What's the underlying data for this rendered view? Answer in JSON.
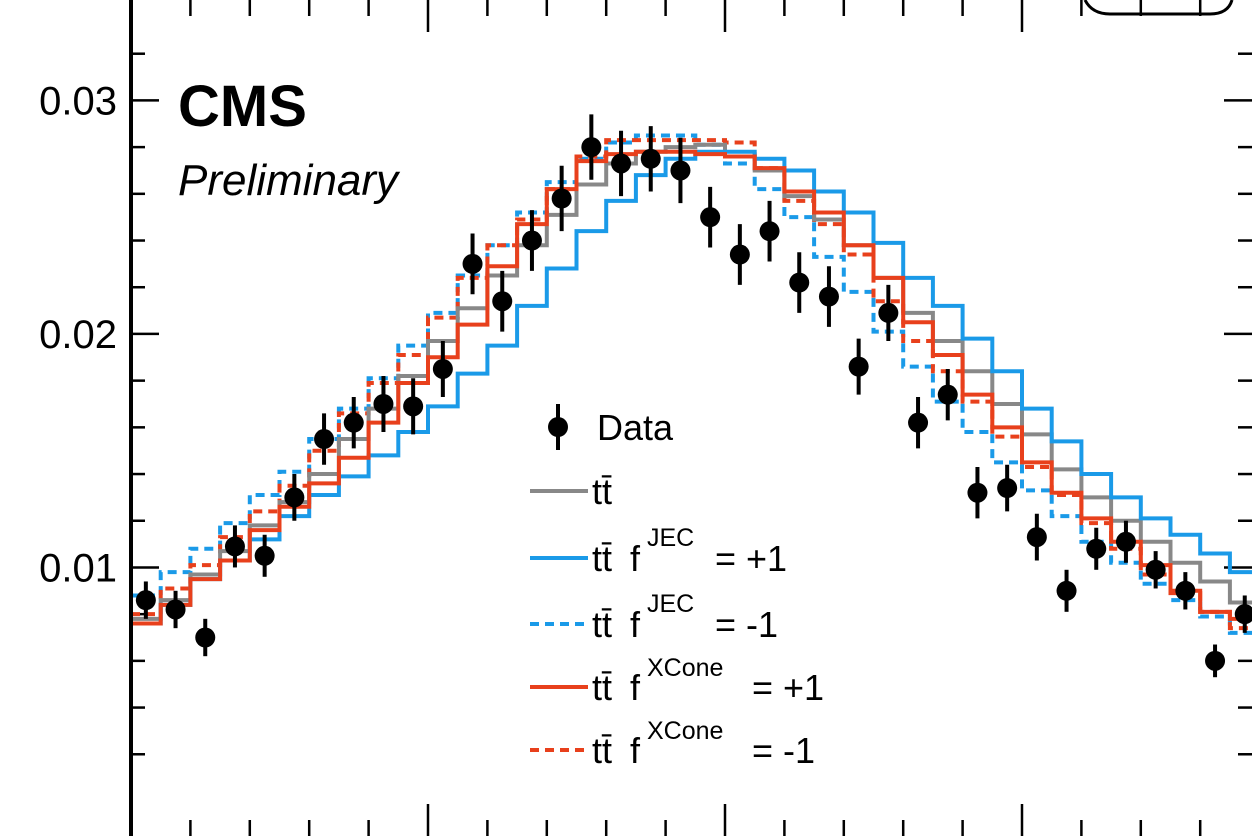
{
  "experiment_label": "CMS",
  "status_label": "Preliminary",
  "colors": {
    "data": "#000000",
    "nominal": "#888888",
    "jec": "#1a9ae8",
    "xcone": "#e8401c"
  },
  "legend": {
    "data": "Data",
    "ttbar": "tt̄",
    "jec_label": "JEC",
    "xcone_label": "XCone",
    "f": "f",
    "plus": "= +1",
    "minus": "= -1"
  },
  "chart_data": {
    "type": "histogram",
    "title": "",
    "xlabel": "",
    "ylabel": "",
    "ylim": [
      -0.0015,
      0.0343
    ],
    "yticks": [
      {
        "value": 0.01,
        "label": "0.01"
      },
      {
        "value": 0.02,
        "label": "0.02"
      },
      {
        "value": 0.03,
        "label": "0.03"
      }
    ],
    "bin_count": 38,
    "legend_position": "center",
    "series": [
      {
        "name": "tt̄",
        "style": "solid",
        "color": "nominal",
        "values": [
          0.0078,
          0.0086,
          0.0097,
          0.0107,
          0.0118,
          0.0128,
          0.014,
          0.0155,
          0.0168,
          0.0182,
          0.0197,
          0.0211,
          0.0225,
          0.0238,
          0.0251,
          0.0264,
          0.0273,
          0.0278,
          0.028,
          0.0281,
          0.0276,
          0.027,
          0.0259,
          0.0249,
          0.0238,
          0.0224,
          0.0209,
          0.0197,
          0.0184,
          0.017,
          0.0157,
          0.0142,
          0.013,
          0.012,
          0.0111,
          0.0102,
          0.0094,
          0.0085
        ]
      },
      {
        "name": "tt̄ f JEC = +1",
        "style": "solid",
        "color": "jec",
        "values": [
          0.0076,
          0.0084,
          0.0095,
          0.0103,
          0.0112,
          0.0122,
          0.0131,
          0.0139,
          0.0148,
          0.0158,
          0.0169,
          0.0183,
          0.0195,
          0.0212,
          0.0228,
          0.0244,
          0.0257,
          0.0268,
          0.0275,
          0.0278,
          0.0278,
          0.0275,
          0.027,
          0.0261,
          0.0252,
          0.0239,
          0.0224,
          0.0212,
          0.0198,
          0.0184,
          0.0168,
          0.0154,
          0.014,
          0.013,
          0.0121,
          0.0114,
          0.0106,
          0.0098
        ]
      },
      {
        "name": "tt̄ f JEC = -1",
        "style": "dashed",
        "color": "jec",
        "values": [
          0.0088,
          0.0098,
          0.0108,
          0.0119,
          0.0131,
          0.0141,
          0.0155,
          0.0168,
          0.0181,
          0.0195,
          0.0209,
          0.0225,
          0.0238,
          0.0252,
          0.0265,
          0.0275,
          0.0282,
          0.0285,
          0.0285,
          0.0281,
          0.0273,
          0.0262,
          0.025,
          0.0233,
          0.0218,
          0.0201,
          0.0186,
          0.0171,
          0.0158,
          0.0145,
          0.0133,
          0.0122,
          0.0111,
          0.0102,
          0.0093,
          0.0086,
          0.0079,
          0.0072
        ]
      },
      {
        "name": "tt̄ f XCone = +1",
        "style": "solid",
        "color": "xcone",
        "values": [
          0.0076,
          0.0084,
          0.0095,
          0.0103,
          0.0116,
          0.0126,
          0.0136,
          0.0147,
          0.0162,
          0.0179,
          0.019,
          0.0204,
          0.0229,
          0.0247,
          0.0262,
          0.0274,
          0.0277,
          0.0278,
          0.0278,
          0.0277,
          0.0276,
          0.0271,
          0.0261,
          0.0252,
          0.0238,
          0.0224,
          0.0205,
          0.0191,
          0.0174,
          0.016,
          0.0145,
          0.0132,
          0.0121,
          0.0111,
          0.0101,
          0.009,
          0.0081,
          0.0078
        ]
      },
      {
        "name": "tt̄ f XCone = -1",
        "style": "dashed",
        "color": "xcone",
        "values": [
          0.008,
          0.0091,
          0.0101,
          0.0113,
          0.0124,
          0.0135,
          0.015,
          0.0166,
          0.0179,
          0.0191,
          0.0207,
          0.0224,
          0.0238,
          0.0249,
          0.0262,
          0.0276,
          0.0283,
          0.0283,
          0.0283,
          0.0283,
          0.0282,
          0.0271,
          0.0257,
          0.0247,
          0.0234,
          0.0214,
          0.0197,
          0.0184,
          0.0171,
          0.0156,
          0.0143,
          0.0131,
          0.0119,
          0.0108,
          0.0097,
          0.0089,
          0.0081,
          0.0074
        ]
      },
      {
        "name": "Data",
        "style": "points",
        "color": "data",
        "values": [
          0.0086,
          0.0082,
          0.007,
          0.0109,
          0.0105,
          0.013,
          0.0155,
          0.0162,
          0.017,
          0.0169,
          0.0185,
          0.023,
          0.0214,
          0.024,
          0.0258,
          0.028,
          0.0273,
          0.0275,
          0.027,
          0.025,
          0.0234,
          0.0244,
          0.0222,
          0.0216,
          0.0186,
          0.0209,
          0.0162,
          0.0174,
          0.0132,
          0.0134,
          0.0113,
          0.009,
          0.0108,
          0.0111,
          0.0099,
          0.009,
          0.006,
          0.008
        ],
        "errors": [
          0.0008,
          0.0008,
          0.0008,
          0.0009,
          0.0009,
          0.001,
          0.0011,
          0.0011,
          0.0012,
          0.0012,
          0.0012,
          0.0013,
          0.0013,
          0.0013,
          0.0014,
          0.0014,
          0.0014,
          0.0014,
          0.0014,
          0.0013,
          0.0013,
          0.0013,
          0.0013,
          0.0013,
          0.0012,
          0.0012,
          0.0011,
          0.0011,
          0.0011,
          0.001,
          0.001,
          0.0009,
          0.0009,
          0.0009,
          0.0008,
          0.0008,
          0.0007,
          0.0008
        ]
      }
    ]
  }
}
